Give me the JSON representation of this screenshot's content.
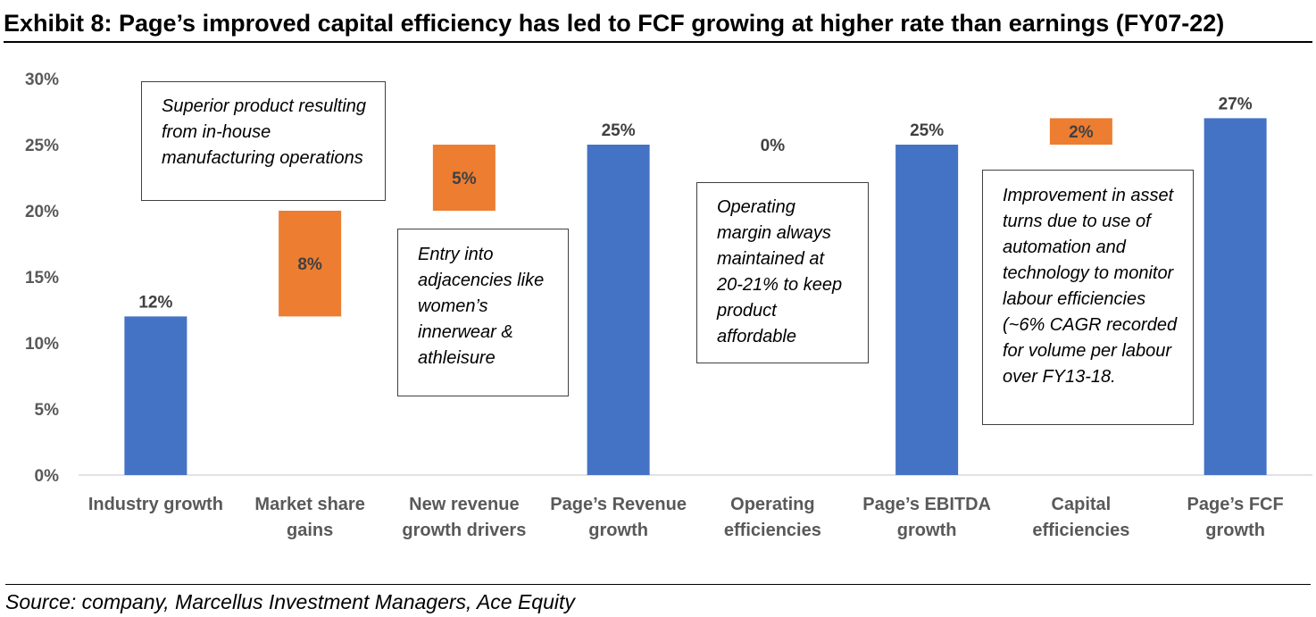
{
  "title": "Exhibit 8: Page’s improved capital efficiency has led to FCF growing at higher rate than earnings (FY07-22)",
  "source": "Source: company, Marcellus Investment Managers, Ace Equity",
  "colors": {
    "total": "#4472C4",
    "increment": "#ED7D31",
    "axis": "#595959",
    "text": "#404040"
  },
  "notes": {
    "market_share": "Superior product resulting from in-house manufacturing operations",
    "new_revenue": "Entry into adjacencies like women’s innerwear & athleisure",
    "operating": "Operating margin always maintained at 20-21% to keep product affordable",
    "capital": "Improvement in asset turns due to use of automation and technology to monitor labour efficiencies (~6% CAGR recorded for volume per labour over FY13-18."
  },
  "chart_data": {
    "type": "bar",
    "subtype": "waterfall",
    "categories": [
      [
        "Industry growth"
      ],
      [
        "Market share",
        "gains"
      ],
      [
        "New revenue",
        "growth drivers"
      ],
      [
        "Page’s Revenue",
        "growth"
      ],
      [
        "Operating",
        "efficiencies"
      ],
      [
        "Page’s EBITDA",
        "growth"
      ],
      [
        "Capital",
        "efficiencies"
      ],
      [
        "Page’s FCF",
        "growth"
      ]
    ],
    "values": [
      12,
      8,
      5,
      25,
      0,
      25,
      2,
      27
    ],
    "bases": [
      0,
      12,
      20,
      0,
      25,
      0,
      25,
      0
    ],
    "kinds": [
      "total",
      "increment",
      "increment",
      "total",
      "increment",
      "total",
      "increment",
      "total"
    ],
    "data_labels": [
      "12%",
      "8%",
      "5%",
      "25%",
      "0%",
      "25%",
      "2%",
      "27%"
    ],
    "ylim": [
      0,
      30
    ],
    "yticks": [
      0,
      5,
      10,
      15,
      20,
      25,
      30
    ],
    "ytick_labels": [
      "0%",
      "5%",
      "10%",
      "15%",
      "20%",
      "25%",
      "30%"
    ],
    "grid": false,
    "legend": "none"
  }
}
